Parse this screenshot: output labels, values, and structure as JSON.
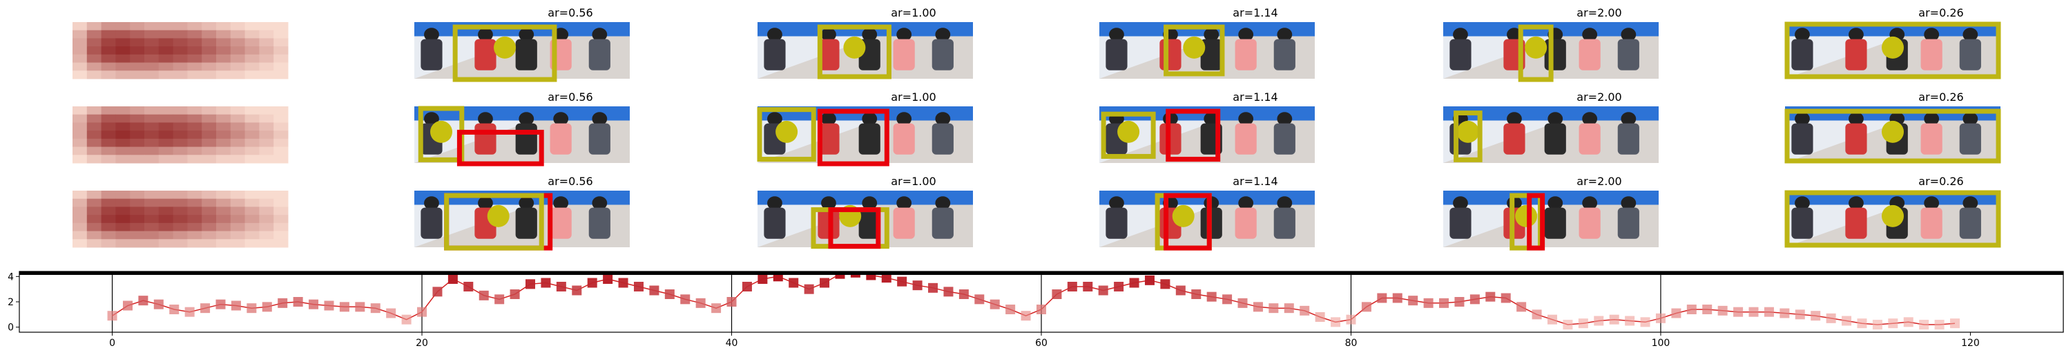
{
  "colors": {
    "heat_light": "#fee5d9",
    "heat_dark": "#8b1a1a",
    "box_yellow": "#bdb514",
    "box_red": "#e8000b",
    "dot_yellow": "#c8c010",
    "line": "#d42020"
  },
  "panel_titles": [
    [
      "",
      "ar=0.56",
      "ar=1.00",
      "ar=1.14",
      "ar=2.00",
      "ar=0.26"
    ],
    [
      "",
      "ar=0.56",
      "ar=1.00",
      "ar=1.14",
      "ar=2.00",
      "ar=0.26"
    ],
    [
      "",
      "ar=0.56",
      "ar=1.00",
      "ar=1.14",
      "ar=2.00",
      "ar=0.26"
    ]
  ],
  "heatmap": {
    "rows": [
      [
        0.1,
        0.25,
        0.4,
        0.4,
        0.35,
        0.3,
        0.3,
        0.3,
        0.25,
        0.2,
        0.15,
        0.1,
        0.05,
        0.05,
        0.05
      ],
      [
        0.25,
        0.55,
        0.7,
        0.7,
        0.65,
        0.6,
        0.6,
        0.6,
        0.55,
        0.45,
        0.35,
        0.25,
        0.15,
        0.1,
        0.05
      ],
      [
        0.3,
        0.65,
        0.8,
        0.85,
        0.8,
        0.75,
        0.8,
        0.75,
        0.7,
        0.6,
        0.5,
        0.4,
        0.3,
        0.2,
        0.1
      ],
      [
        0.3,
        0.7,
        0.85,
        0.9,
        0.85,
        0.8,
        0.85,
        0.8,
        0.75,
        0.65,
        0.55,
        0.45,
        0.35,
        0.25,
        0.15
      ],
      [
        0.25,
        0.6,
        0.75,
        0.8,
        0.75,
        0.7,
        0.75,
        0.7,
        0.65,
        0.55,
        0.45,
        0.35,
        0.25,
        0.2,
        0.1
      ],
      [
        0.15,
        0.35,
        0.45,
        0.5,
        0.5,
        0.5,
        0.45,
        0.4,
        0.35,
        0.3,
        0.25,
        0.2,
        0.15,
        0.1,
        0.05
      ],
      [
        0.05,
        0.15,
        0.2,
        0.25,
        0.25,
        0.25,
        0.2,
        0.2,
        0.15,
        0.15,
        0.1,
        0.1,
        0.05,
        0.05,
        0.05
      ]
    ]
  },
  "boxes_note_free": true,
  "chart_data": {
    "type": "line",
    "title": "",
    "xlabel": "",
    "ylabel": "",
    "xlim": [
      -6,
      126
    ],
    "ylim": [
      -0.4,
      4.4
    ],
    "xticks": [
      0,
      20,
      40,
      60,
      80,
      100,
      120
    ],
    "yticks": [
      0,
      2,
      4
    ],
    "vlines": [
      0,
      20,
      40,
      60,
      80,
      100
    ],
    "grid": false,
    "legend": "none",
    "x": [
      0,
      1,
      2,
      3,
      4,
      5,
      6,
      7,
      8,
      9,
      10,
      11,
      12,
      13,
      14,
      15,
      16,
      17,
      18,
      19,
      20,
      21,
      22,
      23,
      24,
      25,
      26,
      27,
      28,
      29,
      30,
      31,
      32,
      33,
      34,
      35,
      36,
      37,
      38,
      39,
      40,
      41,
      42,
      43,
      44,
      45,
      46,
      47,
      48,
      49,
      50,
      51,
      52,
      53,
      54,
      55,
      56,
      57,
      58,
      59,
      60,
      61,
      62,
      63,
      64,
      65,
      66,
      67,
      68,
      69,
      70,
      71,
      72,
      73,
      74,
      75,
      76,
      77,
      78,
      79,
      80,
      81,
      82,
      83,
      84,
      85,
      86,
      87,
      88,
      89,
      90,
      91,
      92,
      93,
      94,
      95,
      96,
      97,
      98,
      99,
      100,
      101,
      102,
      103,
      104,
      105,
      106,
      107,
      108,
      109,
      110,
      111,
      112,
      113,
      114,
      115,
      116,
      117,
      118,
      119
    ],
    "y": [
      0.9,
      1.7,
      2.1,
      1.8,
      1.4,
      1.2,
      1.5,
      1.8,
      1.7,
      1.5,
      1.6,
      1.9,
      2.0,
      1.8,
      1.7,
      1.6,
      1.6,
      1.5,
      1.1,
      0.6,
      1.2,
      2.8,
      3.8,
      3.2,
      2.5,
      2.2,
      2.6,
      3.4,
      3.5,
      3.2,
      2.9,
      3.5,
      3.8,
      3.5,
      3.2,
      2.9,
      2.6,
      2.2,
      1.9,
      1.5,
      2.0,
      3.2,
      3.8,
      4.0,
      3.5,
      3.0,
      3.5,
      4.2,
      4.3,
      4.1,
      3.9,
      3.6,
      3.3,
      3.1,
      2.8,
      2.6,
      2.2,
      1.8,
      1.4,
      0.9,
      1.4,
      2.6,
      3.2,
      3.2,
      2.9,
      3.2,
      3.5,
      3.7,
      3.4,
      2.9,
      2.6,
      2.4,
      2.2,
      1.9,
      1.6,
      1.5,
      1.5,
      1.3,
      0.8,
      0.4,
      0.6,
      1.6,
      2.3,
      2.3,
      2.1,
      1.9,
      1.9,
      2.0,
      2.2,
      2.4,
      2.3,
      1.6,
      1.0,
      0.6,
      0.2,
      0.3,
      0.5,
      0.6,
      0.5,
      0.4,
      0.7,
      1.1,
      1.4,
      1.4,
      1.3,
      1.2,
      1.2,
      1.2,
      1.1,
      1.0,
      0.9,
      0.7,
      0.5,
      0.3,
      0.2,
      0.3,
      0.4,
      0.2,
      0.2,
      0.3
    ],
    "marker_strength": [
      0.3,
      0.45,
      0.6,
      0.5,
      0.35,
      0.3,
      0.4,
      0.5,
      0.45,
      0.4,
      0.45,
      0.55,
      0.55,
      0.5,
      0.45,
      0.45,
      0.45,
      0.4,
      0.3,
      0.2,
      0.35,
      0.75,
      0.95,
      0.85,
      0.65,
      0.6,
      0.7,
      0.9,
      0.9,
      0.85,
      0.75,
      0.9,
      0.95,
      0.9,
      0.85,
      0.75,
      0.7,
      0.6,
      0.5,
      0.4,
      0.55,
      0.85,
      0.95,
      1.0,
      0.9,
      0.8,
      0.9,
      1.0,
      1.0,
      1.0,
      0.95,
      0.9,
      0.85,
      0.8,
      0.75,
      0.7,
      0.6,
      0.5,
      0.4,
      0.25,
      0.4,
      0.7,
      0.85,
      0.85,
      0.75,
      0.85,
      0.9,
      0.95,
      0.9,
      0.75,
      0.7,
      0.65,
      0.6,
      0.5,
      0.45,
      0.4,
      0.4,
      0.35,
      0.2,
      0.1,
      0.15,
      0.45,
      0.6,
      0.6,
      0.55,
      0.5,
      0.5,
      0.55,
      0.6,
      0.65,
      0.6,
      0.45,
      0.3,
      0.15,
      0.05,
      0.08,
      0.12,
      0.15,
      0.12,
      0.1,
      0.18,
      0.3,
      0.35,
      0.35,
      0.32,
      0.3,
      0.3,
      0.3,
      0.28,
      0.25,
      0.22,
      0.18,
      0.12,
      0.08,
      0.05,
      0.08,
      0.1,
      0.05,
      0.05,
      0.08
    ]
  }
}
